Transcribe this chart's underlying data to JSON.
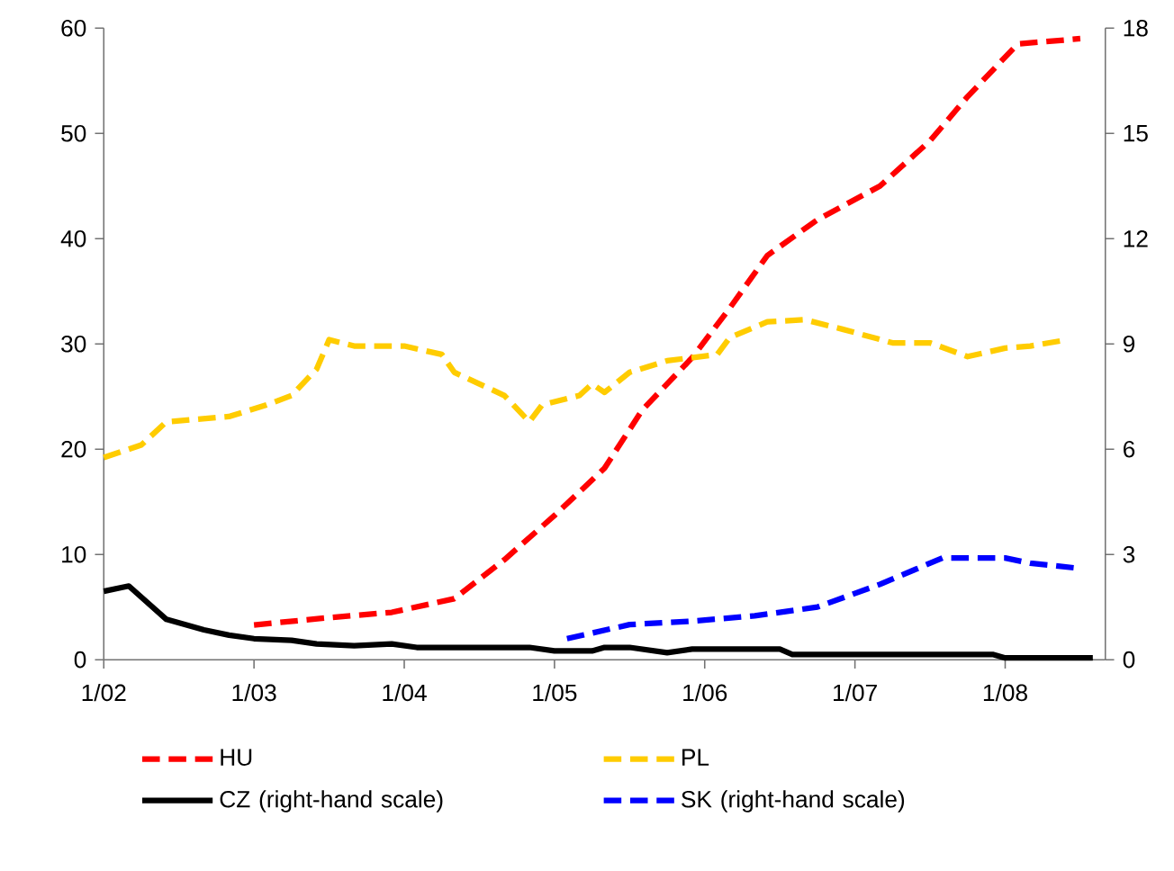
{
  "chart_data": {
    "type": "line",
    "xlim": [
      "2002-01",
      "2008-09"
    ],
    "xticks": [
      {
        "value": "2002-01",
        "label": "1/02"
      },
      {
        "value": "2003-01",
        "label": "1/03"
      },
      {
        "value": "2004-01",
        "label": "1/04"
      },
      {
        "value": "2005-01",
        "label": "1/05"
      },
      {
        "value": "2006-01",
        "label": "1/06"
      },
      {
        "value": "2007-01",
        "label": "1/07"
      },
      {
        "value": "2008-01",
        "label": "1/08"
      }
    ],
    "ylim": [
      0,
      60
    ],
    "yticks": [
      0,
      10,
      20,
      30,
      40,
      50,
      60
    ],
    "y2lim": [
      0,
      18
    ],
    "y2ticks": [
      0,
      3,
      6,
      9,
      12,
      15,
      18
    ],
    "legend": "bottom",
    "series": [
      {
        "name": "HU",
        "color": "#ff0000",
        "line_style": "dashed",
        "x": [
          "2003-01",
          "2003-07",
          "2003-12",
          "2004-05",
          "2004-09",
          "2005-01",
          "2005-05",
          "2005-08",
          "2005-12",
          "2006-03",
          "2006-06",
          "2006-10",
          "2007-03",
          "2007-07",
          "2007-10",
          "2008-02",
          "2008-07"
        ],
        "values": [
          3.3,
          4.0,
          4.5,
          5.8,
          9.5,
          13.7,
          18.2,
          23.7,
          28.7,
          33.4,
          38.4,
          41.8,
          45,
          49.3,
          53.5,
          58.5,
          59
        ]
      },
      {
        "name": "PL",
        "color": "#ffcc00",
        "line_style": "dashed",
        "x": [
          "2002-01",
          "2002-04",
          "2002-06",
          "2002-11",
          "2003-02",
          "2003-04",
          "2003-06",
          "2003-07",
          "2003-09",
          "2004-01",
          "2004-04",
          "2004-05",
          "2004-09",
          "2004-11",
          "2004-12",
          "2005-03",
          "2005-04",
          "2005-05",
          "2005-07",
          "2005-10",
          "2006-02",
          "2006-03",
          "2006-06",
          "2006-09",
          "2006-12",
          "2007-04",
          "2007-07",
          "2007-10",
          "2008-01",
          "2008-03",
          "2008-06"
        ],
        "values": [
          19.2,
          20.4,
          22.6,
          23.1,
          24.2,
          25.1,
          27.6,
          30.4,
          29.8,
          29.8,
          29,
          27.3,
          25.1,
          22.6,
          24.2,
          25.1,
          26.2,
          25.4,
          27.3,
          28.4,
          29,
          30.6,
          32.1,
          32.3,
          31.4,
          30.1,
          30.1,
          28.8,
          29.6,
          29.8,
          30.4
        ]
      },
      {
        "name": "CZ (right-hand scale)",
        "color": "#000000",
        "line_style": "solid",
        "axis": "y2",
        "x": [
          "2002-01",
          "2002-03",
          "2002-06",
          "2002-09",
          "2002-11",
          "2003-01",
          "2003-04",
          "2003-06",
          "2003-09",
          "2003-12",
          "2004-02",
          "2004-11",
          "2005-01",
          "2005-04",
          "2005-05",
          "2005-07",
          "2005-10",
          "2005-12",
          "2006-07",
          "2006-08",
          "2007-12",
          "2008-01",
          "2008-08"
        ],
        "values": [
          1.95,
          2.1,
          1.15,
          0.85,
          0.7,
          0.6,
          0.55,
          0.45,
          0.4,
          0.45,
          0.35,
          0.35,
          0.25,
          0.25,
          0.35,
          0.35,
          0.2,
          0.3,
          0.3,
          0.15,
          0.15,
          0.05,
          0.05
        ]
      },
      {
        "name": "SK (right-hand scale)",
        "color": "#0000ff",
        "line_style": "dashed",
        "axis": "y2",
        "x": [
          "2005-02",
          "2005-07",
          "2005-12",
          "2006-05",
          "2006-10",
          "2007-03",
          "2007-08",
          "2008-01",
          "2008-03",
          "2008-07"
        ],
        "values": [
          0.6,
          1.0,
          1.1,
          1.25,
          1.5,
          2.15,
          2.9,
          2.9,
          2.75,
          2.6
        ]
      }
    ]
  }
}
